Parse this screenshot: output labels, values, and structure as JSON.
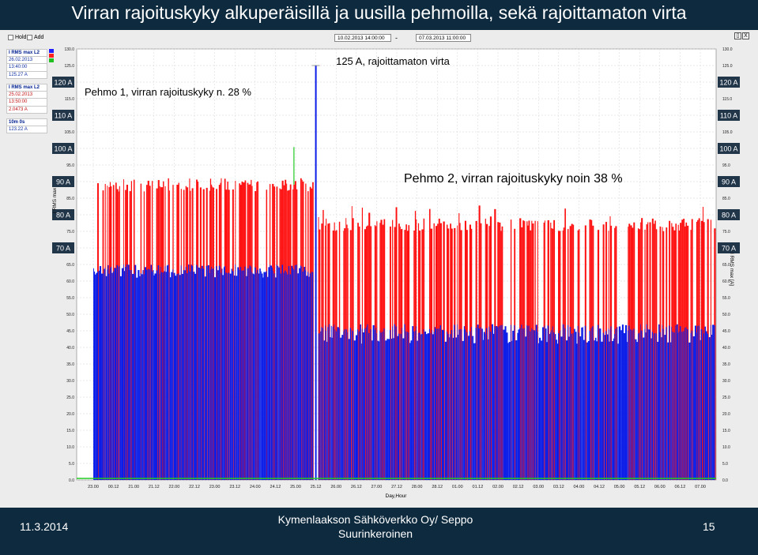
{
  "slide": {
    "title": "Virran rajoituskyky alkuperäisillä ja uusilla pehmoilla, sekä rajoittamaton virta",
    "footer_date": "11.3.2014",
    "footer_org_line1": "Kymenlaakson Sähköverkko Oy/ Seppo",
    "footer_org_line2": "Suurinkeroinen",
    "page_number": "15"
  },
  "toolbar": {
    "hold_label": "Hold",
    "add_label": "Add",
    "start_date": "10.02.2013  14:00:00",
    "separator": "-",
    "end_date": "07.03.2013  11:00:00",
    "close_label": "X"
  },
  "sidebar": {
    "blue": {
      "header": "I RMS max L2",
      "date": "26.02.2013",
      "time": "13:40:00",
      "value": "125.27 A"
    },
    "red": {
      "header": "I RMS max L2",
      "date": "25.02.2013",
      "time": "13:50:00",
      "value": "2.0473 A"
    },
    "window": {
      "header": "10m  0s",
      "value": "123.22 A"
    },
    "colors": [
      "#2020ff",
      "#ff2020",
      "#20c020",
      "#2020ff",
      "#ff2020"
    ]
  },
  "colors": {
    "blue": "#0a1de8",
    "red": "#ff1010",
    "green": "#22cc22",
    "amp_box": "#22364a"
  },
  "chart_data": {
    "type": "bar",
    "title": "",
    "xlabel": "Day,Hour",
    "ylabel": "I RMS max",
    "ylabel_right": "I RMS max [A]",
    "ylim": [
      0,
      130
    ],
    "y_ticks": [
      "0.0",
      "5.0",
      "10.0",
      "15.0",
      "20.0",
      "25.0",
      "30.0",
      "35.0",
      "40.0",
      "45.0",
      "50.0",
      "55.0",
      "60.0",
      "65.0",
      "70.0",
      "75.0",
      "80.0",
      "85.0",
      "90.0",
      "95.0",
      "100.0",
      "105.0",
      "110.0",
      "115.0",
      "120.0",
      "125.0",
      "130.0"
    ],
    "amp_markers": [
      "120 A",
      "110 A",
      "100 A",
      "90 A",
      "80 A",
      "70 A"
    ],
    "amp_marker_values": [
      120,
      110,
      100,
      90,
      80,
      70
    ],
    "x_ticks": [
      "23.00",
      "00.12",
      "21.00",
      "21.12",
      "22.00",
      "22.12",
      "23.00",
      "23.12",
      "24.00",
      "24.12",
      "25.00",
      "25.12",
      "26.00",
      "26.12",
      "27.00",
      "27.12",
      "28.00",
      "28.12",
      "01.00",
      "01.12",
      "02.00",
      "02.12",
      "03.00",
      "03.12",
      "04.00",
      "04.12",
      "05.00",
      "05.12",
      "06.00",
      "06.12",
      "07.00"
    ],
    "annotations": [
      {
        "text": "125 A, rajoittamaton virta"
      },
      {
        "text": "Pehmo 1, virran rajoituskyky n. 28 %"
      },
      {
        "text": "Pehmo 2, virran rajoituskyky noin 38 %"
      }
    ],
    "periods": [
      {
        "name": "Pehmo 1",
        "x_range": [
          "23.00",
          "25.12"
        ],
        "red_peak": 91,
        "green_peak": 108,
        "blue_level": 65
      },
      {
        "name": "unrestricted",
        "x": "25.12",
        "peak": 125
      },
      {
        "name": "Pehmo 2",
        "x_range": [
          "25.12",
          "07.00"
        ],
        "red_peak": 79,
        "blue_level": 47
      }
    ]
  }
}
